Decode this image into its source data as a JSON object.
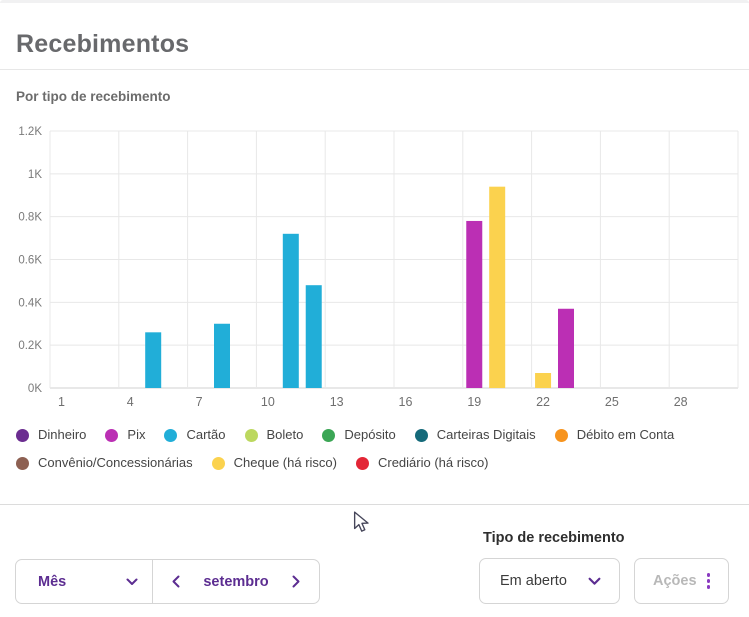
{
  "header": {
    "title": "Recebimentos"
  },
  "chart": {
    "section_title": "Por tipo de recebimento"
  },
  "chart_data": {
    "type": "bar",
    "title": "Por tipo de recebimento",
    "x": {
      "unit": "day",
      "domain": [
        1,
        30
      ],
      "tick_labels": [
        1,
        4,
        7,
        10,
        13,
        16,
        19,
        22,
        25,
        28
      ]
    },
    "y": {
      "max": 1200,
      "ticks": [
        0,
        200,
        400,
        600,
        800,
        1000,
        1200
      ],
      "tick_labels": [
        "0K",
        "0.2K",
        "0.4K",
        "0.6K",
        "0.8K",
        "1K",
        "1.2K"
      ]
    },
    "grid": true,
    "legend_position": "bottom",
    "bars": [
      {
        "day": 5,
        "series": "Cartão",
        "value": 260
      },
      {
        "day": 8,
        "series": "Cartão",
        "value": 300
      },
      {
        "day": 11,
        "series": "Cartão",
        "value": 720
      },
      {
        "day": 12,
        "series": "Cartão",
        "value": 480
      },
      {
        "day": 19,
        "series": "Pix",
        "value": 780
      },
      {
        "day": 20,
        "series": "Cheque (há risco)",
        "value": 940
      },
      {
        "day": 22,
        "series": "Cheque (há risco)",
        "value": 70
      },
      {
        "day": 23,
        "series": "Pix",
        "value": 370
      }
    ]
  },
  "legend": {
    "items": [
      {
        "label": "Dinheiro",
        "color": "#6B2D90"
      },
      {
        "label": "Pix",
        "color": "#BB2FB4"
      },
      {
        "label": "Cartão",
        "color": "#21AED8"
      },
      {
        "label": "Boleto",
        "color": "#BCD85F"
      },
      {
        "label": "Depósito",
        "color": "#3BA655"
      },
      {
        "label": "Carteiras Digitais",
        "color": "#156A7A"
      },
      {
        "label": "Débito em Conta",
        "color": "#F7941E"
      },
      {
        "label": "Convênio/Concessionárias",
        "color": "#8D6052"
      },
      {
        "label": "Cheque (há risco)",
        "color": "#FBD24E"
      },
      {
        "label": "Crediário (há risco)",
        "color": "#E32636"
      }
    ]
  },
  "footer": {
    "period_selector": {
      "value": "Mês"
    },
    "month_nav": {
      "label": "setembro"
    },
    "filter": {
      "label": "Tipo de recebimento",
      "value": "Em aberto"
    },
    "actions_button": {
      "label": "Ações"
    }
  },
  "colors": {
    "accent_purple": "#5C2D91",
    "kebab_purple": "#8A3AC0"
  }
}
